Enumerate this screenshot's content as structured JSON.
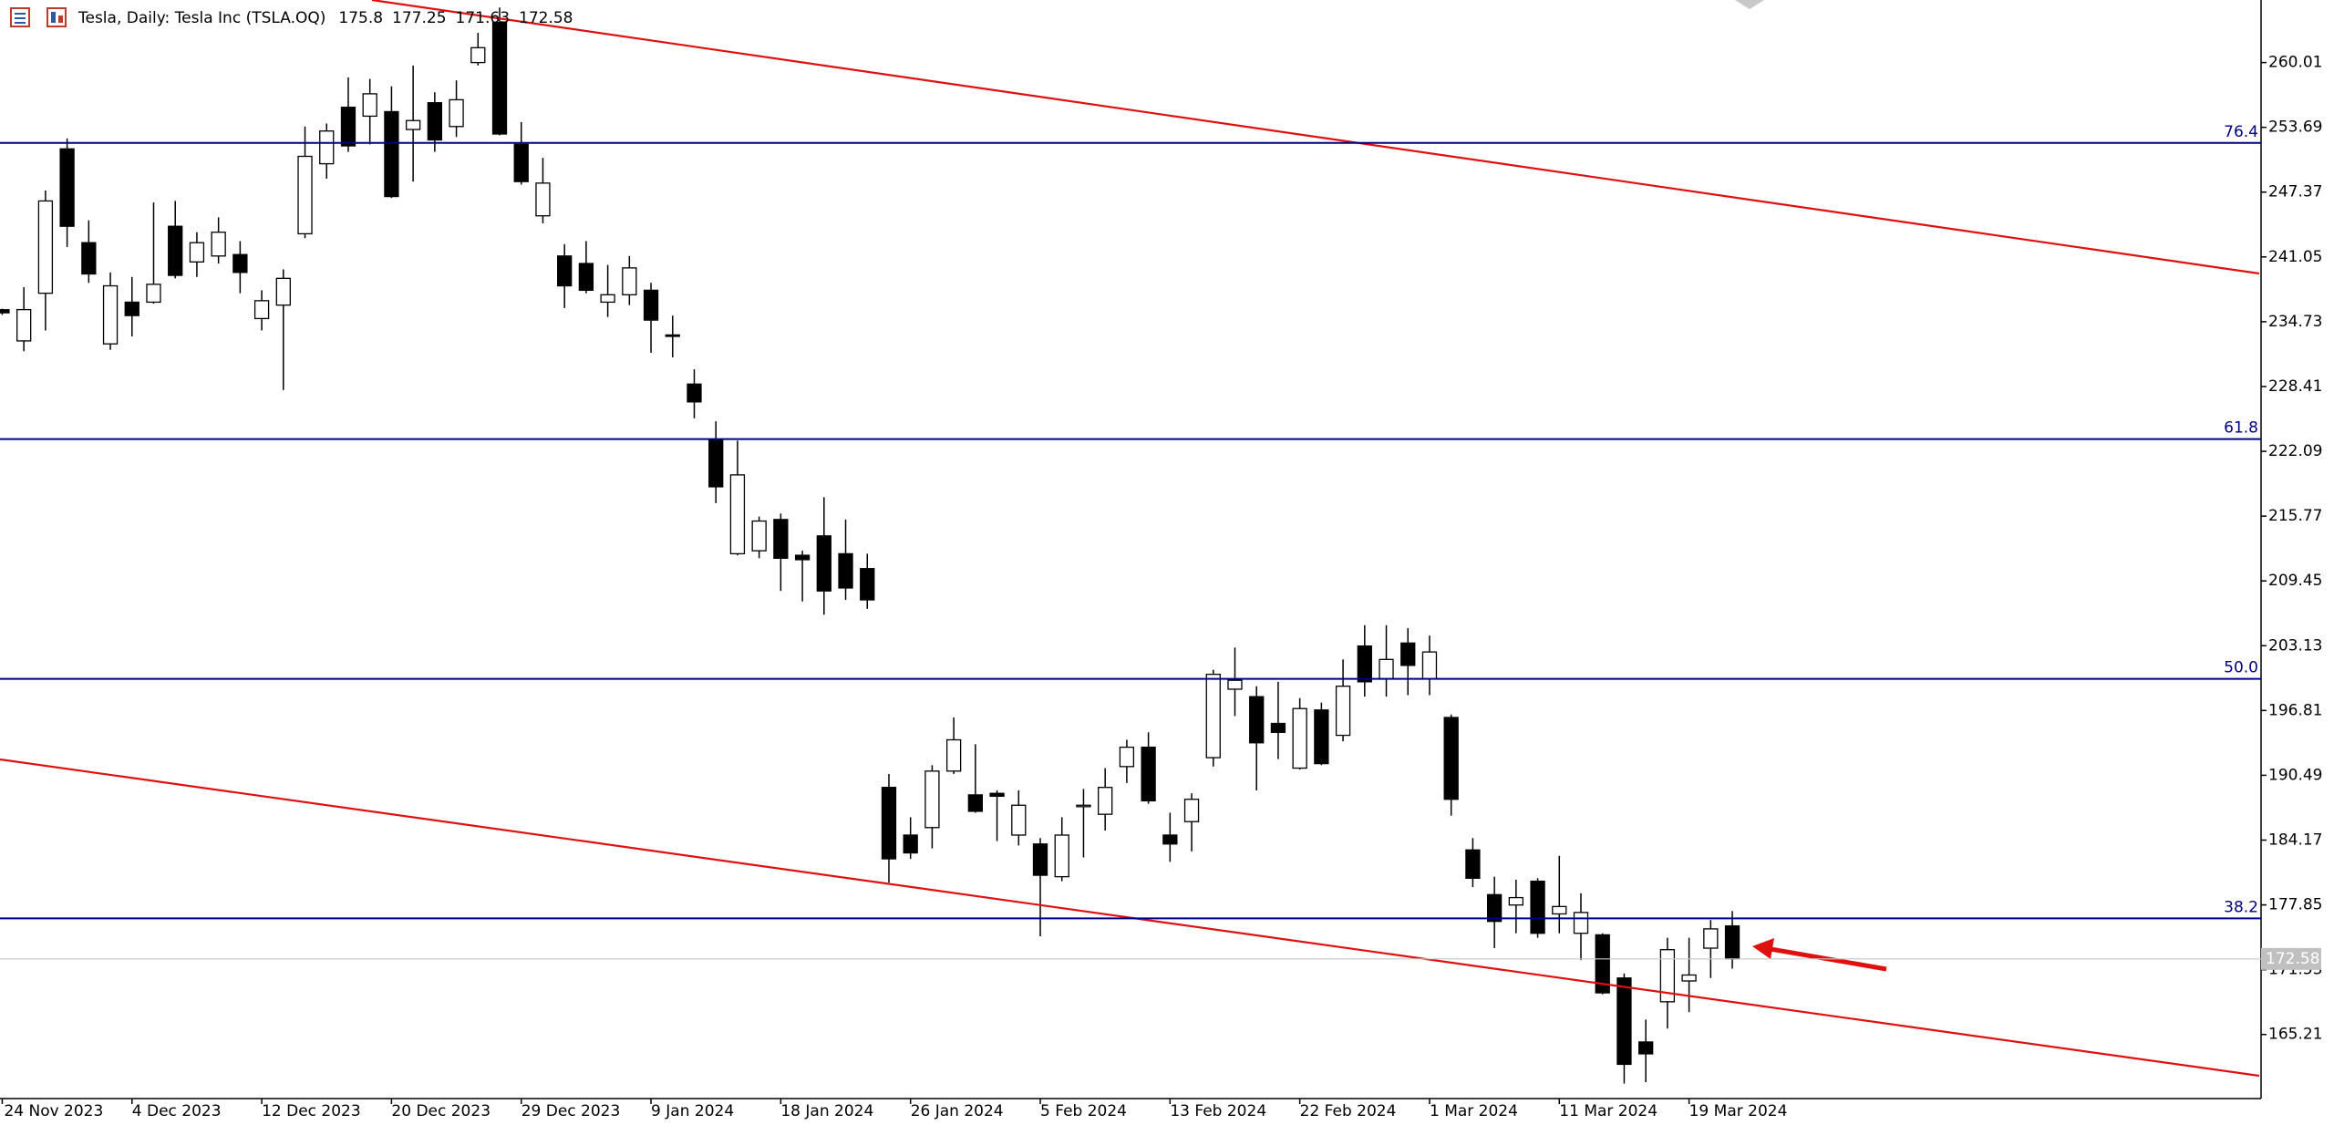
{
  "chart_data": {
    "type": "candlestick",
    "title": "Tesla, Daily:  Tesla Inc (TSLA.OQ)",
    "categories": [
      "24 Nov 2023",
      null,
      null,
      null,
      null,
      null,
      "4 Dec 2023",
      null,
      null,
      null,
      null,
      null,
      "12 Dec 2023",
      null,
      null,
      null,
      null,
      null,
      "20 Dec 2023",
      null,
      null,
      null,
      null,
      null,
      "29 Dec 2023",
      null,
      null,
      null,
      null,
      null,
      "9 Jan 2024",
      null,
      null,
      null,
      null,
      null,
      "18 Jan 2024",
      null,
      null,
      null,
      null,
      null,
      "26 Jan 2024",
      null,
      null,
      null,
      null,
      null,
      "5 Feb 2024",
      null,
      null,
      null,
      null,
      null,
      "13 Feb 2024",
      null,
      null,
      null,
      null,
      null,
      "22 Feb 2024",
      null,
      null,
      null,
      null,
      null,
      "1 Mar 2024",
      null,
      null,
      null,
      null,
      null,
      "11 Mar 2024",
      null,
      null,
      null,
      null,
      null,
      "19 Mar 2024",
      null,
      null
    ],
    "open": [
      235.9,
      232.86,
      237.51,
      251.59,
      242.44,
      232.57,
      236.64,
      236.64,
      244.04,
      240.56,
      241.14,
      241.28,
      235.04,
      236.35,
      243.31,
      250.14,
      255.65,
      254.78,
      255.22,
      253.48,
      256.09,
      253.77,
      260.01,
      263.93,
      252.03,
      245.06,
      241.14,
      240.41,
      236.64,
      237.36,
      237.8,
      233.44,
      228.65,
      223.28,
      212.1,
      212.39,
      215.44,
      211.95,
      213.84,
      212.1,
      210.65,
      189.31,
      184.66,
      185.39,
      190.9,
      188.58,
      188.73,
      184.66,
      183.79,
      180.6,
      187.43,
      186.69,
      191.34,
      193.23,
      184.66,
      185.97,
      192.21,
      198.89,
      198.16,
      195.55,
      191.19,
      196.86,
      194.39,
      203.1,
      199.9,
      203.39,
      199.9,
      196.13,
      183.21,
      178.85,
      177.84,
      180.16,
      176.97,
      175.08,
      174.93,
      170.72,
      164.48,
      168.4,
      170.43,
      173.63,
      175.8
    ],
    "high": [
      236.0,
      238.09,
      247.53,
      252.61,
      244.62,
      239.54,
      239.1,
      246.36,
      246.51,
      243.46,
      244.91,
      242.59,
      237.8,
      239.83,
      253.77,
      254.06,
      258.56,
      258.41,
      257.69,
      259.72,
      257.11,
      258.27,
      262.91,
      265.38,
      254.2,
      250.72,
      242.3,
      242.59,
      240.27,
      241.14,
      238.52,
      235.33,
      230.1,
      225.02,
      223.13,
      215.73,
      216.02,
      212.39,
      217.62,
      215.44,
      212.1,
      190.62,
      186.4,
      191.48,
      196.13,
      193.52,
      189.02,
      189.02,
      184.37,
      186.4,
      189.16,
      191.19,
      193.95,
      194.68,
      186.84,
      188.73,
      200.78,
      202.95,
      199.18,
      199.61,
      198.02,
      197.58,
      201.79,
      205.13,
      205.13,
      204.84,
      204.12,
      196.42,
      184.37,
      180.6,
      180.31,
      180.45,
      182.63,
      178.99,
      175.08,
      171.16,
      166.66,
      174.64,
      174.64,
      176.38,
      177.25
    ],
    "low": [
      235.4,
      231.85,
      233.88,
      242.01,
      238.52,
      231.99,
      233.3,
      236.49,
      238.96,
      239.1,
      240.41,
      237.51,
      233.88,
      228.07,
      242.88,
      248.69,
      251.3,
      252.03,
      246.8,
      248.4,
      251.3,
      252.75,
      259.72,
      252.9,
      248.11,
      244.33,
      236.06,
      237.51,
      235.19,
      236.35,
      231.7,
      231.26,
      225.31,
      217.04,
      211.95,
      211.66,
      208.47,
      207.45,
      206.15,
      207.6,
      206.73,
      180.02,
      182.34,
      183.36,
      190.62,
      186.84,
      184.08,
      183.65,
      174.79,
      180.16,
      182.48,
      185.1,
      189.74,
      187.71,
      182.05,
      183.07,
      191.34,
      196.27,
      189.02,
      192.07,
      191.05,
      191.48,
      193.81,
      198.16,
      198.16,
      198.31,
      198.31,
      186.55,
      179.58,
      173.63,
      175.08,
      174.64,
      175.08,
      172.46,
      169.13,
      160.42,
      160.56,
      165.79,
      167.39,
      170.72,
      171.63
    ],
    "close": [
      235.6,
      235.91,
      246.51,
      244.04,
      239.39,
      238.23,
      235.33,
      238.38,
      239.25,
      242.44,
      243.46,
      239.54,
      236.78,
      238.96,
      250.86,
      253.33,
      251.88,
      256.96,
      246.94,
      254.35,
      252.46,
      256.38,
      261.46,
      253.04,
      248.4,
      248.25,
      238.23,
      237.8,
      237.36,
      239.98,
      234.89,
      233.3,
      226.91,
      218.63,
      219.79,
      215.29,
      211.66,
      211.52,
      208.47,
      208.76,
      207.6,
      182.34,
      182.92,
      190.9,
      193.95,
      186.98,
      188.45,
      187.57,
      180.74,
      184.66,
      187.57,
      189.31,
      193.23,
      188.0,
      183.79,
      188.15,
      200.34,
      199.76,
      193.66,
      194.68,
      197.0,
      191.63,
      199.18,
      199.61,
      201.79,
      201.21,
      202.52,
      188.15,
      180.45,
      176.24,
      178.56,
      175.08,
      177.69,
      177.11,
      169.27,
      162.3,
      163.32,
      173.48,
      171.01,
      175.51,
      172.58
    ],
    "up_color": "#ffffff",
    "down_color": "#000000",
    "ylim": [
      158.96,
      266.11
    ],
    "yticks": [
      165.21,
      171.53,
      177.85,
      184.17,
      190.49,
      196.81,
      203.13,
      209.45,
      215.77,
      222.09,
      228.41,
      234.73,
      241.05,
      247.37,
      253.69,
      260.01
    ],
    "fib_levels": [
      {
        "label": "76.4",
        "value": 252.17
      },
      {
        "label": "61.8",
        "value": 223.28
      },
      {
        "label": "50.0",
        "value": 199.9
      },
      {
        "label": "38.2",
        "value": 176.53
      }
    ],
    "fib_color": "#000080"
  }
}
